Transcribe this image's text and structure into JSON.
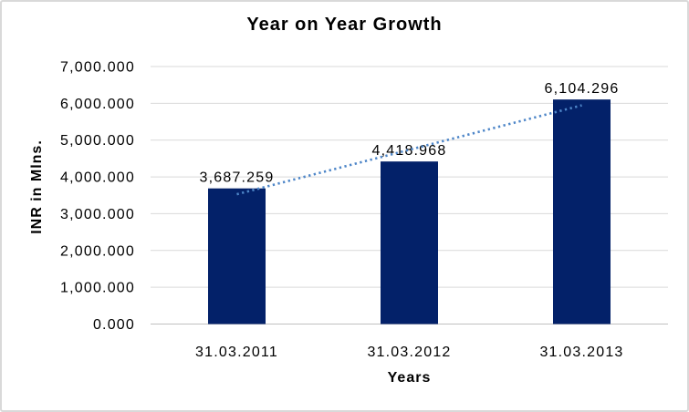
{
  "chart_data": {
    "type": "bar",
    "title": "Year on Year Growth",
    "xlabel": "Years",
    "ylabel": "INR in Mlns.",
    "categories": [
      "31.03.2011",
      "31.03.2012",
      "31.03.2013"
    ],
    "values": [
      3687.259,
      4418.968,
      6104.296
    ],
    "data_labels": [
      "3,687.259",
      "4,418.968",
      "6,104.296"
    ],
    "ylim": [
      0,
      7000
    ],
    "ytick_step": 1000,
    "ytick_labels": [
      "0.000",
      "1,000.000",
      "2,000.000",
      "3,000.000",
      "4,000.000",
      "5,000.000",
      "6,000.000",
      "7,000.000"
    ],
    "grid": true,
    "legend": "none",
    "trendline": "linear-dotted",
    "colors": {
      "bar": "#032169",
      "trendline": "#4e86c8",
      "gridline": "#d9d9d9",
      "axis_line": "#c0c0c0",
      "text": "#000000",
      "frame_border": "#d9d9d9",
      "background": "#ffffff"
    }
  }
}
